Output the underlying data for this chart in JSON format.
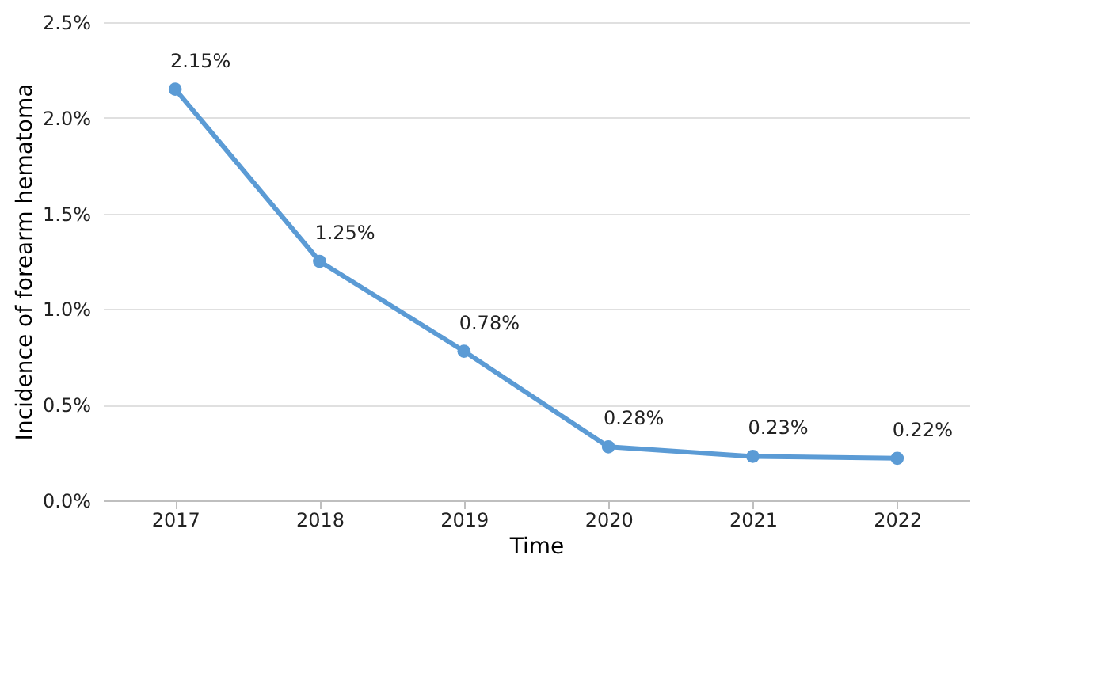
{
  "chart_data": {
    "type": "line",
    "xlabel": "Time",
    "ylabel": "Incidence of forearm hematoma",
    "categories": [
      "2017",
      "2018",
      "2019",
      "2020",
      "2021",
      "2022"
    ],
    "series": [
      {
        "color": "#5b9bd5",
        "values": [
          2.15,
          1.25,
          0.78,
          0.28,
          0.23,
          0.22
        ],
        "value_labels": [
          "2.15%",
          "1.25%",
          "0.78%",
          "0.28%",
          "0.23%",
          "0.22%"
        ]
      }
    ],
    "ylim": [
      0,
      2.5
    ],
    "yticks": [
      {
        "value": 0,
        "label": "0.0%"
      },
      {
        "value": 0.5,
        "label": "0.5%"
      },
      {
        "value": 1,
        "label": "1.0%"
      },
      {
        "value": 1.5,
        "label": "1.5%"
      },
      {
        "value": 2,
        "label": "2.0%"
      },
      {
        "value": 2.5,
        "label": "2.5%"
      }
    ],
    "grid": "y",
    "marker": "circle",
    "line_style": "solid"
  }
}
